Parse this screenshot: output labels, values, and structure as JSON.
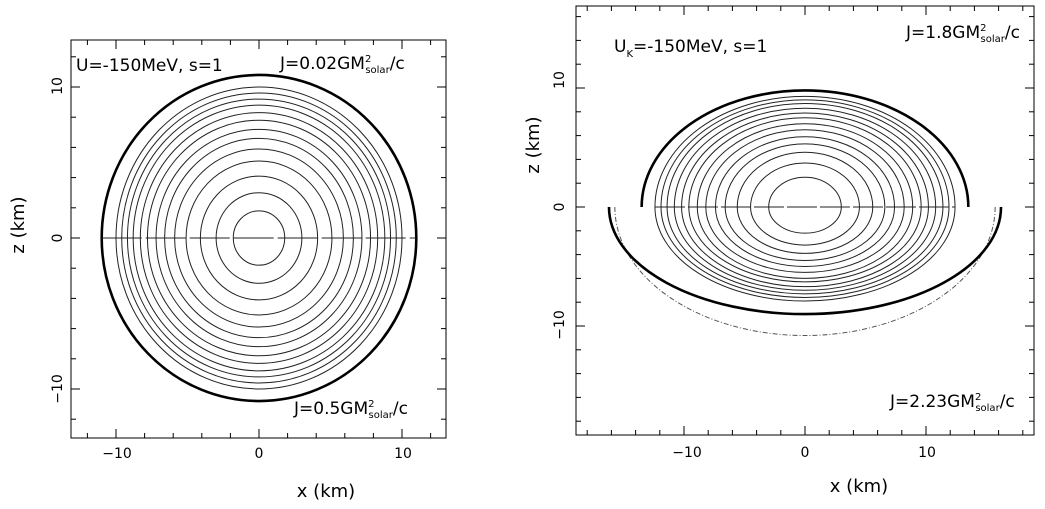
{
  "chart_data": [
    {
      "type": "contour",
      "xlabel": "x (km)",
      "ylabel": "z (km)",
      "xlim": [
        -13,
        12.5
      ],
      "ylim": [
        -13,
        13
      ],
      "xticks": [
        -10,
        0,
        10
      ],
      "yticks": [
        -10,
        0,
        10
      ],
      "xtick_labels": [
        "−10",
        "0",
        "10"
      ],
      "ytick_labels": [
        "−10",
        "0",
        "10"
      ],
      "annotations": {
        "model": "U=-150MeV, s=1",
        "j_upper": {
          "pre": "J=0.02GM",
          "sup": "2",
          "sub": "solar",
          "post": "/c"
        },
        "j_lower": {
          "pre": "J=0.5GM",
          "sup": "2",
          "sub": "solar",
          "post": "/c"
        }
      },
      "upper_half": {
        "outer_surface": {
          "x_radius": 11,
          "z_extent": 10.8
        },
        "contours": [
          {
            "r": 1.8
          },
          {
            "r": 3.0
          },
          {
            "r": 4.1
          },
          {
            "r": 5.1
          },
          {
            "r": 5.9
          },
          {
            "r": 6.6
          },
          {
            "r": 7.2
          },
          {
            "r": 7.8
          },
          {
            "r": 8.3
          },
          {
            "r": 8.8
          },
          {
            "r": 9.2
          },
          {
            "r": 9.6
          },
          {
            "r": 10.0
          }
        ]
      },
      "lower_half": {
        "outer_surface": {
          "x_radius": 11,
          "z_extent": 10.8
        },
        "contours": [
          {
            "r": 1.8
          },
          {
            "r": 3.0
          },
          {
            "r": 4.1
          },
          {
            "r": 5.1
          },
          {
            "r": 5.9
          },
          {
            "r": 6.6
          },
          {
            "r": 7.2
          },
          {
            "r": 7.8
          },
          {
            "r": 8.3
          },
          {
            "r": 8.8
          },
          {
            "r": 9.2
          },
          {
            "r": 9.6
          },
          {
            "r": 10.0
          }
        ]
      }
    },
    {
      "type": "contour",
      "xlabel": "x (km)",
      "ylabel": "z (km)",
      "xlim": [
        -19,
        18.5
      ],
      "ylim": [
        -19,
        17
      ],
      "xticks": [
        -10,
        0,
        10
      ],
      "yticks": [
        -10,
        0,
        10
      ],
      "xtick_labels": [
        "−10",
        "0",
        "10"
      ],
      "ytick_labels": [
        "−10",
        "0",
        "10"
      ],
      "annotations": {
        "model": {
          "pre": "U",
          "sub": "K",
          "post": "=-150MeV, s=1"
        },
        "j_upper": {
          "pre": "J=1.8GM",
          "sup": "2",
          "sub": "solar",
          "post": "/c"
        },
        "j_lower": {
          "pre": "J=2.23GM",
          "sup": "2",
          "sub": "solar",
          "post": "/c"
        }
      },
      "upper_half": {
        "outer_surface": {
          "x_radius": 13.5,
          "z_extent": 9.8
        },
        "contours": [
          {
            "rx": 3.0,
            "rz": 2.5
          },
          {
            "rx": 4.5,
            "rz": 3.7
          },
          {
            "rx": 5.6,
            "rz": 4.6
          },
          {
            "rx": 6.6,
            "rz": 5.3
          },
          {
            "rx": 7.4,
            "rz": 5.9
          },
          {
            "rx": 8.2,
            "rz": 6.5
          },
          {
            "rx": 8.9,
            "rz": 7.0
          },
          {
            "rx": 9.6,
            "rz": 7.5
          },
          {
            "rx": 10.2,
            "rz": 7.9
          },
          {
            "rx": 10.8,
            "rz": 8.3
          },
          {
            "rx": 11.4,
            "rz": 8.7
          },
          {
            "rx": 11.9,
            "rz": 9.0
          },
          {
            "rx": 12.4,
            "rz": 9.3
          }
        ]
      },
      "lower_half": {
        "outer_surface": {
          "x_radius": 16.2,
          "z_extent": 9.0
        },
        "dashed_surface": {
          "x_radius": 16.2,
          "z_extent": 10.8
        },
        "contours": [
          {
            "rx": 3.0,
            "rz": 2.2
          },
          {
            "rx": 4.5,
            "rz": 3.2
          },
          {
            "rx": 5.6,
            "rz": 3.9
          },
          {
            "rx": 6.6,
            "rz": 4.5
          },
          {
            "rx": 7.4,
            "rz": 5.0
          },
          {
            "rx": 8.2,
            "rz": 5.5
          },
          {
            "rx": 8.9,
            "rz": 6.0
          },
          {
            "rx": 9.6,
            "rz": 6.3
          },
          {
            "rx": 10.2,
            "rz": 6.7
          },
          {
            "rx": 10.8,
            "rz": 7.0
          },
          {
            "rx": 11.4,
            "rz": 7.3
          },
          {
            "rx": 11.9,
            "rz": 7.6
          },
          {
            "rx": 12.4,
            "rz": 7.9
          }
        ]
      }
    }
  ]
}
